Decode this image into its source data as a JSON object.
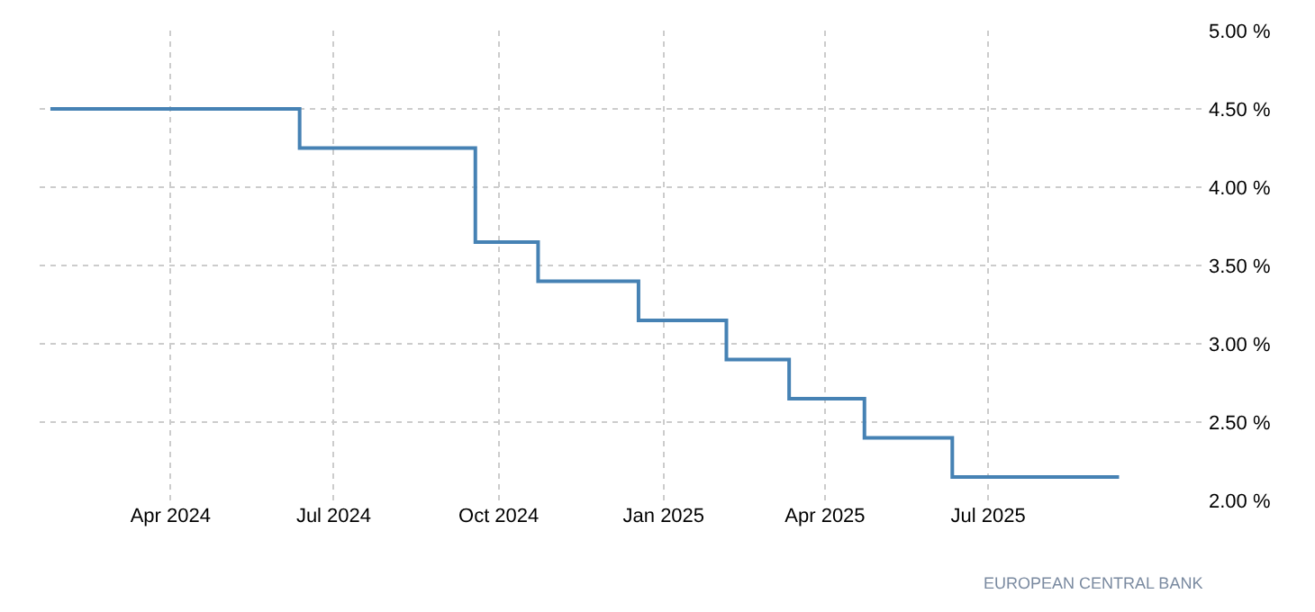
{
  "chart_data": {
    "type": "step",
    "x": [
      "2024-01-25",
      "2024-06-12",
      "2024-09-18",
      "2024-10-23",
      "2024-12-18",
      "2025-02-05",
      "2025-03-12",
      "2025-04-23",
      "2025-06-11",
      "2025-09-12"
    ],
    "series": [
      {
        "color": "#4682b4",
        "values": [
          4.5,
          4.25,
          3.65,
          3.4,
          3.15,
          2.9,
          2.65,
          2.4,
          2.15,
          2.15
        ]
      }
    ],
    "xlim": [
      "2024-01-19",
      "2025-10-31"
    ],
    "xticks": [
      {
        "value": "2024-04-01",
        "label": "Apr 2024"
      },
      {
        "value": "2024-07-01",
        "label": "Jul 2024"
      },
      {
        "value": "2024-10-01",
        "label": "Oct 2024"
      },
      {
        "value": "2025-01-01",
        "label": "Jan 2025"
      },
      {
        "value": "2025-04-01",
        "label": "Apr 2025"
      },
      {
        "value": "2025-07-01",
        "label": "Jul 2025"
      }
    ],
    "ylim": [
      2,
      5
    ],
    "yticks": [
      {
        "value": 2,
        "label": "2.00 %"
      },
      {
        "value": 2.5,
        "label": "2.50 %"
      },
      {
        "value": 3,
        "label": "3.00 %"
      },
      {
        "value": 3.5,
        "label": "3.50 %"
      },
      {
        "value": 4,
        "label": "4.00 %"
      },
      {
        "value": 4.5,
        "label": "4.50 %"
      },
      {
        "value": 5,
        "label": "5.00 %"
      }
    ],
    "grid": true,
    "line_style": "solid",
    "marker": "none",
    "annotations": [
      "EUROPEAN CENTRAL BANK"
    ]
  }
}
